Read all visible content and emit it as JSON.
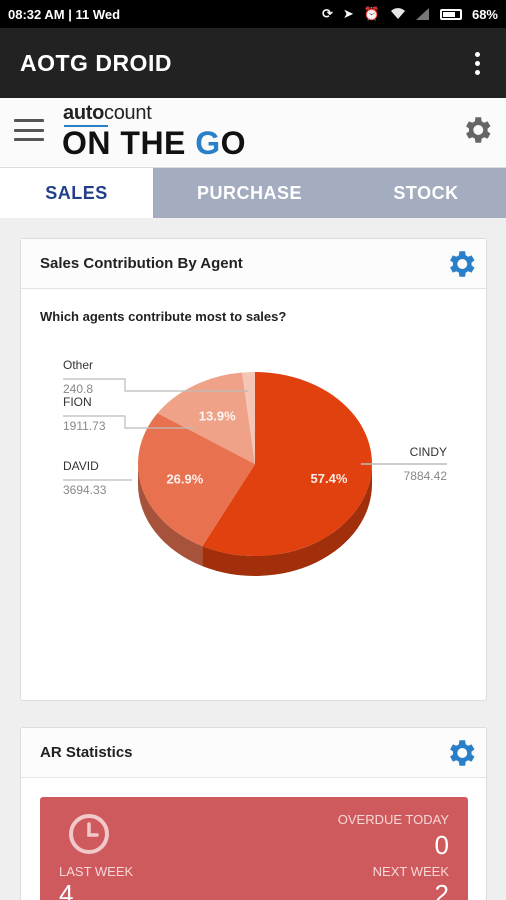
{
  "status": {
    "time": "08:32 AM",
    "date": "11 Wed",
    "battery": "68%",
    "icons": [
      "sync-icon",
      "location-icon",
      "alarm-icon",
      "wifi-icon",
      "signal-icon",
      "battery-icon"
    ]
  },
  "appbar": {
    "title": "AOTG DROID"
  },
  "brand": {
    "small_auto": "auto",
    "small_count": "count",
    "big_pre": "ON THE ",
    "big_g": "G",
    "big_post": "O"
  },
  "tabs": [
    {
      "label": "SALES",
      "active": true
    },
    {
      "label": "PURCHASE",
      "active": false
    },
    {
      "label": "STOCK",
      "active": false
    }
  ],
  "sales_card": {
    "title": "Sales Contribution By Agent",
    "question": "Which agents contribute most to sales?"
  },
  "ar_card": {
    "title": "AR Statistics",
    "overdue_today_label": "OVERDUE TODAY",
    "overdue_today_value": "0",
    "last_week_label": "LAST WEEK",
    "last_week_value": "4",
    "next_week_label": "NEXT WEEK",
    "next_week_value": "2"
  },
  "colors": {
    "accent": "#2a7fc9",
    "tab_inactive": "#a4acbf",
    "ar_box": "#cf5a5e"
  },
  "chart_data": {
    "type": "pie",
    "slices": [
      {
        "label": "CINDY",
        "value": 7884.42,
        "value_label": "7884.42",
        "percent_label": "57.4%",
        "color": "#e0410f"
      },
      {
        "label": "DAVID",
        "value": 3694.33,
        "value_label": "3694.33",
        "percent_label": "26.9%",
        "color": "#e87250"
      },
      {
        "label": "FION",
        "value": 1911.73,
        "value_label": "1911.73",
        "percent_label": "13.9%",
        "color": "#efa288"
      },
      {
        "label": "Other",
        "value": 240.8,
        "value_label": "240.8",
        "percent_label": "",
        "color": "#f5c6b6"
      }
    ]
  }
}
